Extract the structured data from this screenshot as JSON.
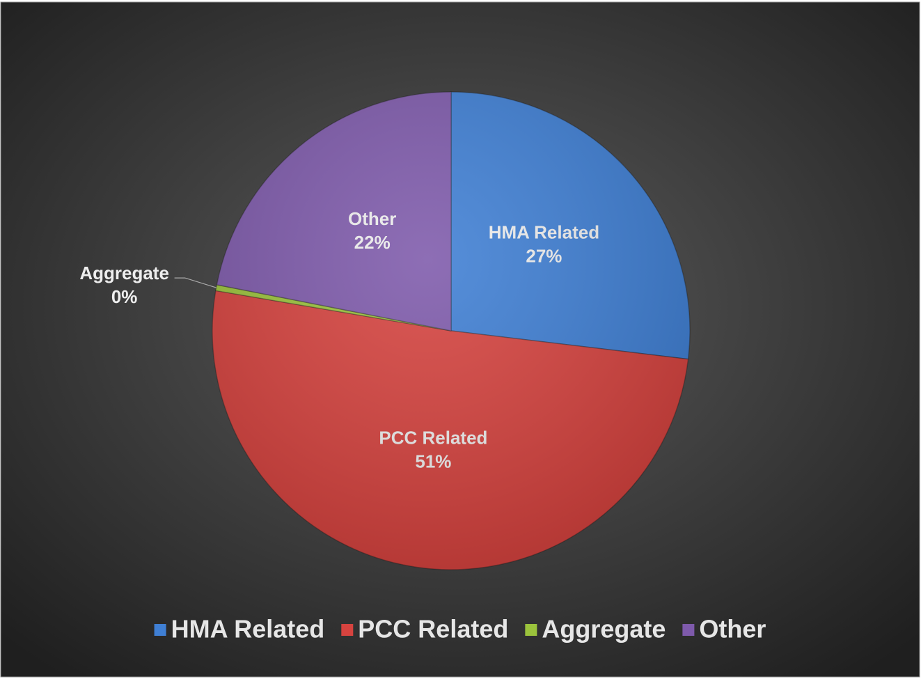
{
  "chart_data": {
    "type": "pie",
    "categories": [
      "HMA Related",
      "PCC Related",
      "Aggregate",
      "Other"
    ],
    "values": [
      27,
      51,
      0.4,
      22
    ],
    "value_labels": [
      "27%",
      "51%",
      "0%",
      "22%"
    ],
    "colors": [
      "#3f7fd4",
      "#d6433f",
      "#9bc33c",
      "#7e5aab"
    ],
    "legend": "bottom"
  }
}
